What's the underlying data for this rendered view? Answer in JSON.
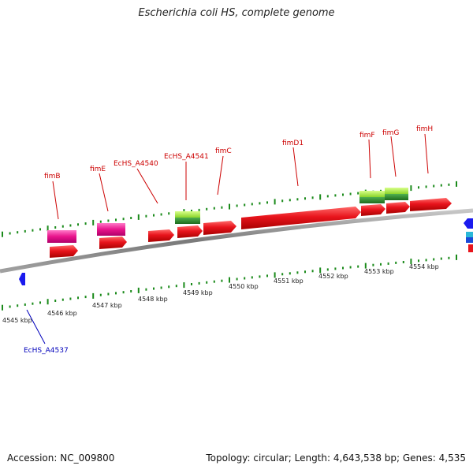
{
  "title": "Escherichia coli HS, complete genome",
  "footer": {
    "accession": "Accession: NC_009800",
    "topology": "Topology: circular; Length: 4,643,538 bp; Genes: 4,535"
  },
  "scale": {
    "unit": "kbp",
    "outer_ticks": [
      "4545 kbp",
      "4546 kbp",
      "4547 kbp",
      "4548 kbp",
      "4549 kbp",
      "4550 kbp",
      "4551 kbp",
      "4552 kbp",
      "4553 kbp",
      "4554 kbp"
    ]
  },
  "genes": [
    {
      "name": "fimB",
      "color": "#cc0000"
    },
    {
      "name": "fimE",
      "color": "#cc0000"
    },
    {
      "name": "EcHS_A4540",
      "color": "#cc0000"
    },
    {
      "name": "EcHS_A4541",
      "color": "#cc0000"
    },
    {
      "name": "fimC",
      "color": "#cc0000"
    },
    {
      "name": "fimD1",
      "color": "#cc0000"
    },
    {
      "name": "fimF",
      "color": "#cc0000"
    },
    {
      "name": "fimG",
      "color": "#cc0000"
    },
    {
      "name": "fimH",
      "color": "#cc0000"
    },
    {
      "name": "EcHS_A4537",
      "color": "#0000bb"
    }
  ],
  "colors": {
    "gene_red": "#e8141c",
    "pink": "#e8148c",
    "green": "#2e8b2e",
    "lime": "#9be82c",
    "blue": "#1a1aee",
    "backbone": "#808080",
    "ticks": "#1a8a1a"
  }
}
